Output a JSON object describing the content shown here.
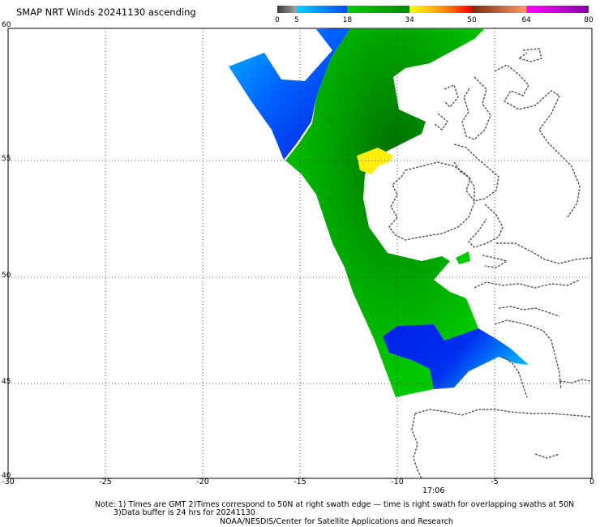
{
  "title": "SMAP NRT Winds 20241130 ascending",
  "legend": {
    "ticks": [
      "0",
      "5",
      "18",
      "34",
      "50",
      "64",
      "80"
    ],
    "bands": [
      {
        "from": 0,
        "to": 5,
        "colors": [
          "#3a3a3a",
          "#a8a8a8"
        ]
      },
      {
        "from": 5,
        "to": 18,
        "colors": [
          "#00d2ff",
          "#0048ff"
        ]
      },
      {
        "from": 18,
        "to": 34,
        "colors": [
          "#00cc00",
          "#008a00"
        ]
      },
      {
        "from": 34,
        "to": 50,
        "colors": [
          "#ffff00",
          "#ff9900",
          "#ff0000"
        ]
      },
      {
        "from": 50,
        "to": 64,
        "colors": [
          "#7a2a10",
          "#ff9966"
        ]
      },
      {
        "from": 64,
        "to": 80,
        "colors": [
          "#ff00ff",
          "#8800aa"
        ]
      }
    ]
  },
  "map": {
    "lon_range": [
      -30,
      0
    ],
    "lat_range": [
      40,
      60
    ],
    "lon_labels": [
      "-30",
      "-25",
      "-20",
      "-15",
      "-10",
      "-5",
      "0"
    ],
    "lat_labels": [
      "40",
      "45",
      "50",
      "55",
      "60"
    ],
    "swath_time": "17:06",
    "colors": {
      "calm_light": "#00aaff",
      "calm_blue": "#0022ee",
      "moderate_green": "#00cc00",
      "moderate_dark": "#007a00",
      "gale_yellow": "#ffff00",
      "coast": "#555555",
      "grid": "#333333"
    }
  },
  "notes": {
    "line1": "Note: 1) Times are GMT 2)Times correspond to 50N at right swath edge — time is right swath for overlapping swaths at 50N",
    "line2": "3)Data buffer is 24 hrs for 20241130",
    "line3": "NOAA/NESDIS/Center for Satellite Applications and Research"
  }
}
